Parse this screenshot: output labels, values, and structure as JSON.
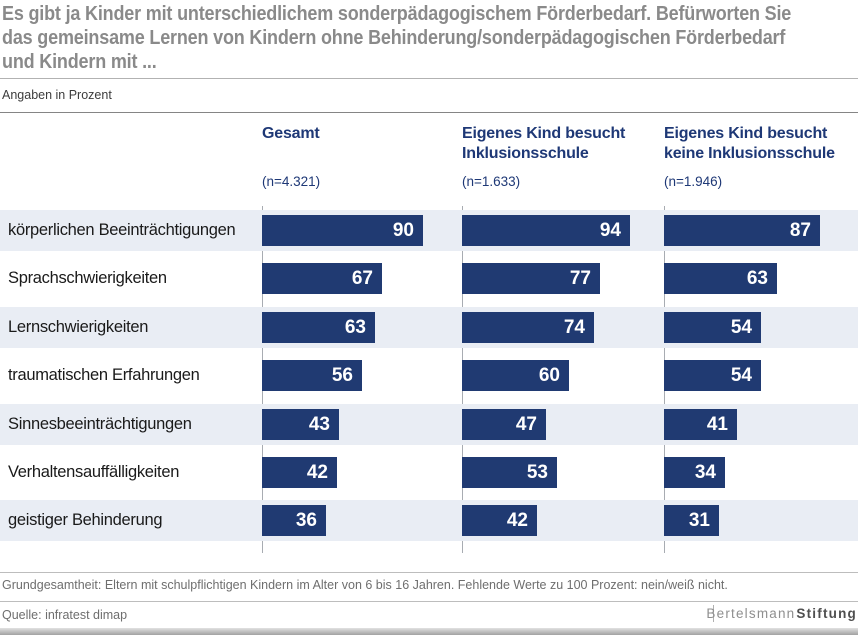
{
  "title_lines": [
    "Es gibt ja Kinder mit unterschiedlichem sonderpädagogischem Förderbedarf. Befürworten Sie",
    "das gemeinsame Lernen von Kindern ohne Behinderung/sonderpädagogischen Förderbedarf",
    "und Kindern mit ..."
  ],
  "subtitle": "Angaben in Prozent",
  "columns": [
    {
      "line1": "Gesamt",
      "line2": "",
      "n": "(n=4.321)"
    },
    {
      "line1": "Eigenes Kind besucht",
      "line2": "Inklusionsschule",
      "n": "(n=1.633)"
    },
    {
      "line1": "Eigenes Kind besucht",
      "line2": "keine Inklusionsschule",
      "n": "(n=1.946)"
    }
  ],
  "footer": {
    "note": "Grundgesamtheit: Eltern mit schulpflichtigen Kindern im Alter von 6 bis 16 Jahren. Fehlende Werte zu 100 Prozent: nein/weiß nicht.",
    "source": "Quelle: infratest dimap",
    "brand_regular": "Bertelsmann",
    "brand_bold": "Stiftung"
  },
  "colors": {
    "bar": "#203a72",
    "header_text": "#1e3876",
    "row_alt_bg": "#e9edf4",
    "title_gray": "#8a8a8a"
  },
  "chart_data": {
    "type": "bar",
    "orientation": "horizontal",
    "title": "Es gibt ja Kinder mit unterschiedlichem sonderpädagogischem Förderbedarf. Befürworten Sie das gemeinsame Lernen von Kindern ohne Behinderung/sonderpädagogischen Förderbedarf und Kindern mit ...",
    "unit_note": "Angaben in Prozent",
    "categories": [
      "körperlichen Beeinträchtigungen",
      "Sprachschwierigkeiten",
      "Lernschwierigkeiten",
      "traumatischen Erfahrungen",
      "Sinnesbeeinträchtigungen",
      "Verhaltensauffälligkeiten",
      "geistiger Behinderung"
    ],
    "series": [
      {
        "name": "Gesamt",
        "n_label": "(n=4.321)",
        "values": [
          90,
          67,
          63,
          56,
          43,
          42,
          36
        ]
      },
      {
        "name": "Eigenes Kind besucht Inklusionsschule",
        "n_label": "(n=1.633)",
        "values": [
          94,
          77,
          74,
          60,
          47,
          53,
          42
        ]
      },
      {
        "name": "Eigenes Kind besucht keine Inklusionsschule",
        "n_label": "(n=1.946)",
        "values": [
          87,
          63,
          54,
          54,
          41,
          34,
          31
        ]
      }
    ],
    "xlim": [
      0,
      100
    ],
    "value_labels": true,
    "grid": false,
    "legend_position": "column-headers",
    "footnote": "Grundgesamtheit: Eltern mit schulpflichtigen Kindern im Alter von 6 bis 16 Jahren. Fehlende Werte zu 100 Prozent: nein/weiß nicht.",
    "source": "Quelle: infratest dimap"
  }
}
